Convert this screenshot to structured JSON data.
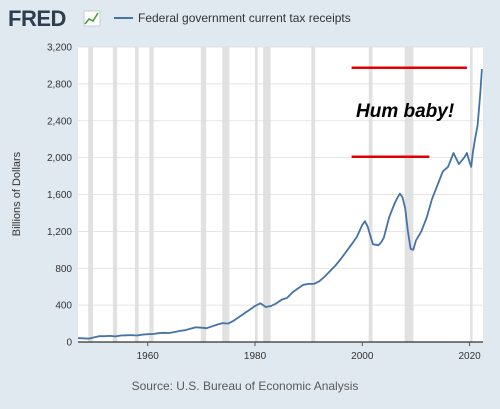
{
  "header": {
    "logo": "FRED",
    "logo_icon": "fred-chart-icon",
    "legend_label": "Federal government current tax receipts"
  },
  "source": "Source: U.S. Bureau of Economic Analysis",
  "annotation": "Hum baby!",
  "colors": {
    "background": "#e1e9f0",
    "plot": "#ffffff",
    "line": "#4572a7",
    "recession": "#e1e1e1",
    "annotation_lines": "#e00000"
  },
  "chart_data": {
    "type": "line",
    "title": "",
    "xlabel": "",
    "ylabel": "Billions of Dollars",
    "xlim": [
      1947,
      2022.5
    ],
    "ylim": [
      0,
      3200
    ],
    "grid": true,
    "legend": "top-left",
    "yticks": [
      0,
      400,
      800,
      1200,
      1600,
      2000,
      2400,
      2800,
      3200
    ],
    "ytick_labels": [
      "0",
      "400",
      "800",
      "1,200",
      "1,600",
      "2,000",
      "2,400",
      "2,800",
      "3,200"
    ],
    "xticks": [
      1960,
      1980,
      2000,
      2020
    ],
    "xtick_labels": [
      "1960",
      "1980",
      "2000",
      "2020"
    ],
    "recessions": [
      [
        1948.9,
        1949.8
      ],
      [
        1953.5,
        1954.3
      ],
      [
        1957.6,
        1958.3
      ],
      [
        1960.3,
        1961.1
      ],
      [
        1969.9,
        1970.9
      ],
      [
        1973.9,
        1975.2
      ],
      [
        1980.0,
        1980.5
      ],
      [
        1981.5,
        1982.9
      ],
      [
        1990.5,
        1991.2
      ],
      [
        2001.2,
        2001.9
      ],
      [
        2007.9,
        2009.5
      ],
      [
        2020.1,
        2020.4
      ]
    ],
    "reference_lines": [
      {
        "value": 2975,
        "from": 1998,
        "to": 2019.5
      },
      {
        "value": 2010,
        "from": 1998,
        "to": 2012.5
      }
    ],
    "series": [
      {
        "name": "Federal government current tax receipts",
        "x": [
          1947,
          1948,
          1949,
          1950,
          1951,
          1952,
          1953,
          1954,
          1955,
          1956,
          1957,
          1958,
          1959,
          1960,
          1961,
          1962,
          1963,
          1964,
          1965,
          1966,
          1967,
          1968,
          1969,
          1970,
          1971,
          1972,
          1973,
          1974,
          1975,
          1976,
          1977,
          1978,
          1979,
          1980,
          1981,
          1982,
          1983,
          1984,
          1985,
          1986,
          1987,
          1988,
          1989,
          1990,
          1991,
          1992,
          1993,
          1994,
          1995,
          1996,
          1997,
          1998,
          1999,
          2000,
          2000.5,
          2001,
          2001.5,
          2002,
          2003,
          2003.5,
          2004,
          2005,
          2006,
          2006.5,
          2007,
          2007.5,
          2008,
          2008.5,
          2009,
          2009.5,
          2010,
          2011,
          2012,
          2013,
          2014,
          2015,
          2016,
          2017,
          2018,
          2019,
          2019.5,
          2020,
          2020.3,
          2020.6,
          2021,
          2021.5,
          2022,
          2022.3
        ],
        "y": [
          42,
          40,
          36,
          50,
          64,
          63,
          66,
          61,
          70,
          73,
          75,
          70,
          80,
          85,
          87,
          95,
          100,
          98,
          108,
          120,
          128,
          145,
          160,
          155,
          150,
          170,
          190,
          205,
          200,
          230,
          270,
          310,
          350,
          390,
          420,
          380,
          390,
          420,
          460,
          480,
          540,
          580,
          620,
          630,
          630,
          660,
          710,
          770,
          830,
          900,
          980,
          1060,
          1140,
          1270,
          1310,
          1250,
          1150,
          1060,
          1050,
          1080,
          1130,
          1350,
          1500,
          1560,
          1610,
          1570,
          1450,
          1200,
          1010,
          1000,
          1100,
          1200,
          1350,
          1550,
          1700,
          1850,
          1900,
          2050,
          1930,
          2000,
          2050,
          1950,
          1900,
          2050,
          2200,
          2350,
          2700,
          2960
        ]
      }
    ]
  }
}
